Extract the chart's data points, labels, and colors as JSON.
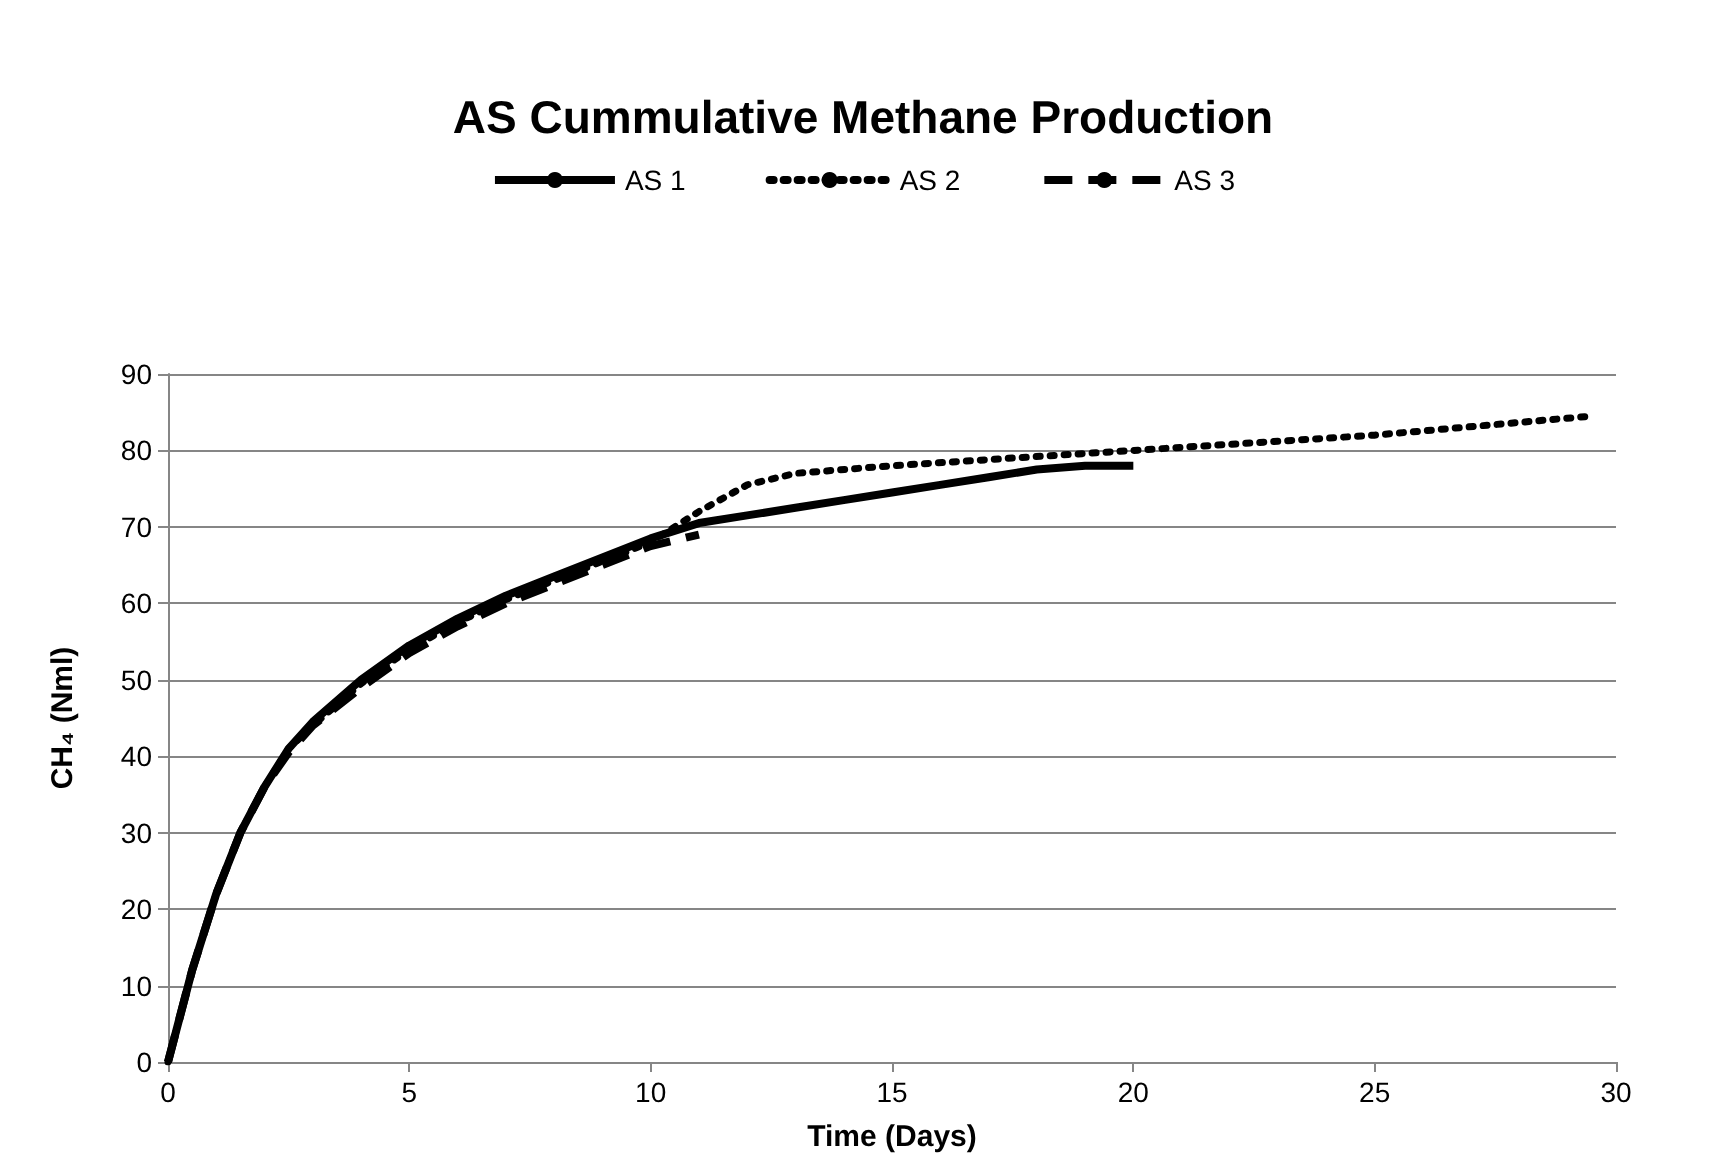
{
  "chart_data": {
    "type": "line",
    "title": "AS Cummulative Methane Production",
    "xlabel": "Time (Days)",
    "ylabel": "CH₄ (Nml)",
    "xlim": [
      0,
      30
    ],
    "xticks": [
      0,
      5,
      10,
      15,
      20,
      25,
      30
    ],
    "ylim": [
      0,
      90
    ],
    "yticks": [
      0,
      10,
      20,
      30,
      40,
      50,
      60,
      70,
      80,
      90
    ],
    "grid": "y",
    "legend": "top",
    "marker": "none",
    "series": [
      {
        "name": "AS 1",
        "color": "#000000",
        "line_style": "solid",
        "x": [
          0,
          0.5,
          1,
          1.5,
          2,
          2.5,
          3,
          4,
          5,
          6,
          7,
          8,
          9,
          10,
          11,
          12,
          13,
          14,
          15,
          16,
          17,
          18,
          19,
          20
        ],
        "values": [
          0,
          12,
          22,
          30,
          36,
          41,
          44.5,
          50,
          54.5,
          58,
          61,
          63.5,
          66,
          68.5,
          70.5,
          71.5,
          72.5,
          73.5,
          74.5,
          75.5,
          76.5,
          77.5,
          78,
          78
        ]
      },
      {
        "name": "AS 2",
        "color": "#000000",
        "line_style": "dotted",
        "x": [
          0,
          0.5,
          1,
          1.5,
          2,
          2.5,
          3,
          4,
          5,
          6,
          7,
          8,
          9,
          10,
          11,
          12,
          13,
          15,
          20,
          25,
          29.5
        ],
        "values": [
          0,
          12,
          22,
          30,
          36,
          41,
          44,
          49.5,
          54,
          57.5,
          60.5,
          63,
          65.5,
          68,
          72,
          75.5,
          77,
          78,
          80,
          82,
          84.5
        ]
      },
      {
        "name": "AS 3",
        "color": "#000000",
        "line_style": "dashed",
        "x": [
          0,
          0.5,
          1,
          1.5,
          2,
          2.5,
          3,
          4,
          5,
          6,
          7,
          8,
          9,
          10,
          11
        ],
        "values": [
          0,
          12,
          22,
          30,
          36,
          40.5,
          44,
          49,
          53.5,
          57,
          60,
          62.5,
          65,
          67.5,
          69
        ]
      }
    ]
  }
}
